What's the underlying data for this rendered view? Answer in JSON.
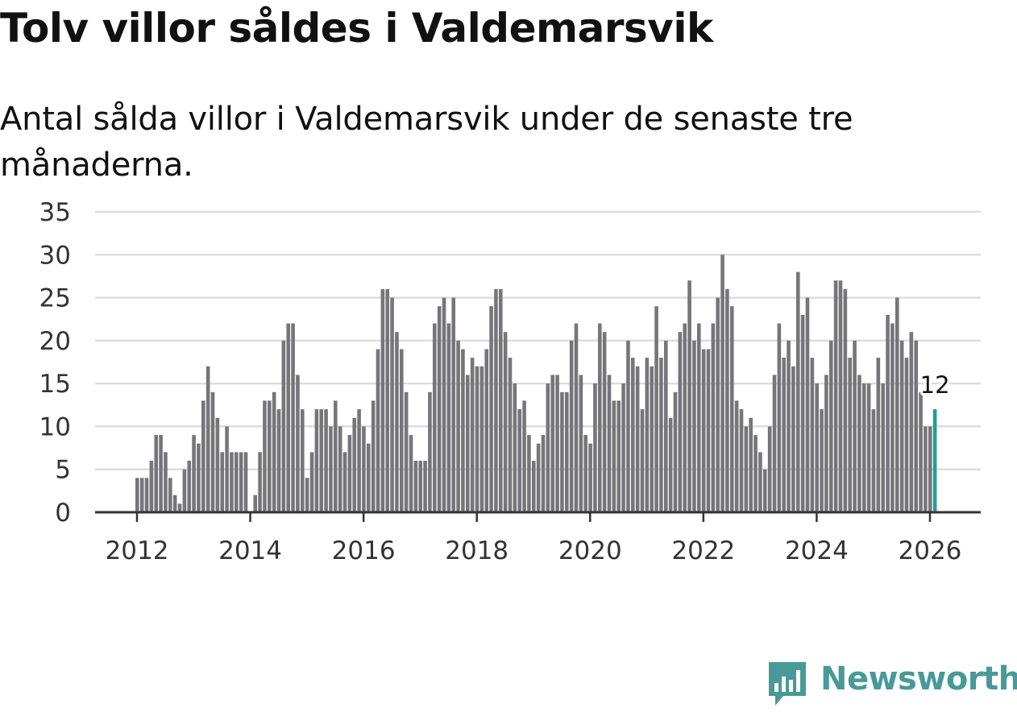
{
  "title": "Tolv villor såldes i Valdemarsvik",
  "subtitle": "Antal sålda villor i Valdemarsvik under de senaste tre månaderna.",
  "brand": {
    "name": "Newsworthy",
    "icon": "bar-chart-speech-bubble-icon",
    "color": "#479a98"
  },
  "colors": {
    "bar": "#76757a",
    "highlight": "#1f9e96",
    "grid": "#dddddd",
    "axis": "#333333"
  },
  "chart_data": {
    "type": "bar",
    "title": "Tolv villor såldes i Valdemarsvik",
    "xlabel": "",
    "ylabel": "",
    "ylim": [
      0,
      35
    ],
    "yticks": [
      "0",
      "5",
      "10",
      "15",
      "20",
      "25",
      "30",
      "35"
    ],
    "xticks": [
      "2012",
      "2014",
      "2016",
      "2018",
      "2020",
      "2022",
      "2024",
      "2026"
    ],
    "grid": true,
    "legend": "none",
    "start": "2012-01",
    "end": "2026-02",
    "frequency": "monthly",
    "series": [
      {
        "name": "Antal sålda villor (rullande tre månader)",
        "values": [
          4,
          4,
          4,
          6,
          9,
          9,
          7,
          4,
          2,
          1,
          5,
          6,
          9,
          8,
          13,
          17,
          14,
          11,
          7,
          10,
          7,
          7,
          7,
          7,
          0,
          2,
          7,
          13,
          13,
          14,
          12,
          20,
          22,
          22,
          16,
          12,
          4,
          7,
          12,
          12,
          12,
          10,
          13,
          10,
          7,
          9,
          11,
          12,
          10,
          8,
          13,
          19,
          26,
          26,
          25,
          21,
          19,
          14,
          9,
          6,
          6,
          6,
          14,
          22,
          24,
          25,
          22,
          25,
          20,
          19,
          16,
          18,
          17,
          17,
          19,
          24,
          26,
          26,
          21,
          18,
          15,
          12,
          13,
          9,
          6,
          8,
          9,
          15,
          16,
          16,
          14,
          14,
          20,
          22,
          16,
          9,
          8,
          15,
          22,
          21,
          16,
          13,
          13,
          15,
          20,
          18,
          17,
          12,
          18,
          17,
          24,
          18,
          20,
          11,
          14,
          21,
          22,
          27,
          20,
          22,
          19,
          19,
          22,
          25,
          30,
          26,
          24,
          13,
          12,
          10,
          11,
          9,
          7,
          5,
          10,
          16,
          22,
          18,
          20,
          17,
          28,
          23,
          25,
          18,
          15,
          12,
          16,
          20,
          27,
          27,
          26,
          18,
          20,
          16,
          15,
          15,
          12,
          18,
          15,
          23,
          22,
          25,
          20,
          18,
          21,
          20,
          14,
          10,
          10,
          12
        ]
      }
    ],
    "annotations": [
      {
        "label": "12",
        "month": "2026-02",
        "value": 12
      }
    ]
  }
}
